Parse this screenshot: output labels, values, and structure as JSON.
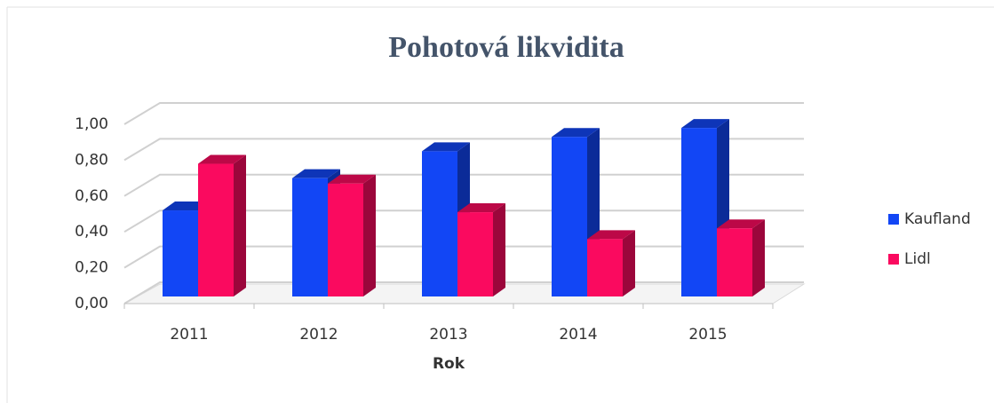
{
  "chart_data": {
    "type": "bar3d",
    "title": "Pohotová likvidita",
    "x_label": "Rok",
    "categories": [
      "2011",
      "2012",
      "2013",
      "2014",
      "2015"
    ],
    "series": [
      {
        "name": "Kaufland",
        "color": "#1246f5",
        "values": [
          0.48,
          0.66,
          0.81,
          0.89,
          0.94
        ]
      },
      {
        "name": "Lidl",
        "color": "#fa0a5f",
        "values": [
          0.74,
          0.63,
          0.47,
          0.32,
          0.38
        ]
      }
    ],
    "ylim": [
      0,
      1
    ],
    "yticks": [
      {
        "value": 0,
        "label": "0,00"
      },
      {
        "value": 0.2,
        "label": "0,20"
      },
      {
        "value": 0.4,
        "label": "0,40"
      },
      {
        "value": 0.6,
        "label": "0,60"
      },
      {
        "value": 0.8,
        "label": "0,80"
      },
      {
        "value": 1,
        "label": "1,00"
      }
    ],
    "grid": true,
    "legend": "right"
  }
}
